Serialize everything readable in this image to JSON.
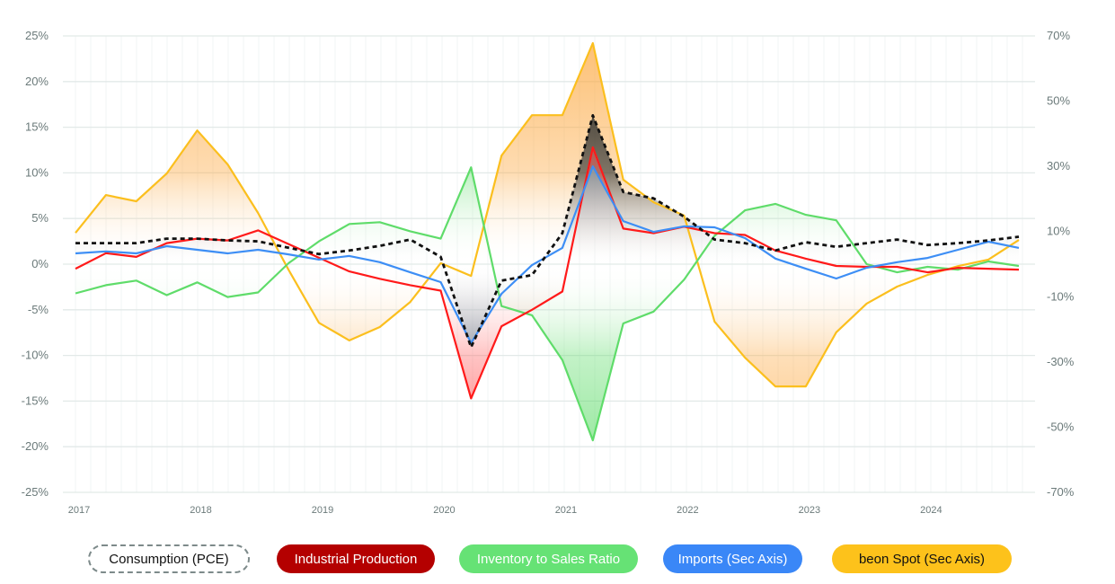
{
  "chart_data": {
    "type": "line",
    "x": [
      "2017Q1",
      "2017Q2",
      "2017Q3",
      "2017Q4",
      "2018Q1",
      "2018Q2",
      "2018Q3",
      "2018Q4",
      "2019Q1",
      "2019Q2",
      "2019Q3",
      "2019Q4",
      "2020Q1",
      "2020Q2",
      "2020Q3",
      "2020Q4",
      "2021Q1",
      "2021Q2",
      "2021Q3",
      "2021Q4",
      "2022Q1",
      "2022Q2",
      "2022Q3",
      "2022Q4",
      "2023Q1",
      "2023Q2",
      "2023Q3",
      "2023Q4",
      "2024Q1",
      "2024Q2",
      "2024Q3",
      "2024Q4"
    ],
    "x_tick_labels": [
      "2017",
      "2018",
      "2019",
      "2020",
      "2021",
      "2022",
      "2023",
      "2024"
    ],
    "y_ticks": [
      "25%",
      "20%",
      "15%",
      "10%",
      "5%",
      "0%",
      "-5%",
      "-10%",
      "-15%",
      "-20%",
      "-25%"
    ],
    "y2_ticks": [
      "70%",
      "50%",
      "30%",
      "10%",
      "-10%",
      "-30%",
      "-50%",
      "-70%"
    ],
    "ylim": [
      -25,
      25
    ],
    "y2lim": [
      -70,
      70
    ],
    "grid": true,
    "legend_position": "bottom",
    "series": [
      {
        "name": "Consumption (PCE)",
        "axis": "primary",
        "color": "#111111",
        "style": "dashed",
        "values": [
          2.3,
          2.3,
          2.3,
          2.8,
          2.8,
          2.6,
          2.5,
          1.8,
          1.1,
          1.5,
          2.0,
          2.7,
          0.8,
          -9.1,
          -1.8,
          -1.2,
          3.4,
          16.3,
          7.9,
          7.2,
          5.2,
          2.7,
          2.3,
          1.5,
          2.4,
          1.9,
          2.3,
          2.7,
          2.1,
          2.3,
          2.6,
          3.0
        ]
      },
      {
        "name": "Industrial Production",
        "axis": "primary",
        "color": "#ff1a1a",
        "legend_color": "#b40000",
        "values": [
          -0.5,
          1.2,
          0.8,
          2.3,
          2.8,
          2.6,
          3.7,
          2.2,
          0.7,
          -0.8,
          -1.6,
          -2.3,
          -2.9,
          -14.7,
          -6.8,
          -5.0,
          -3.0,
          12.8,
          3.9,
          3.4,
          4.1,
          3.4,
          3.2,
          1.5,
          0.6,
          -0.2,
          -0.3,
          -0.3,
          -0.9,
          -0.4,
          -0.5,
          -0.6
        ]
      },
      {
        "name": "Inventory to Sales Ratio",
        "axis": "primary",
        "color": "#5fdc6a",
        "legend_color": "#66e275",
        "values": [
          -3.2,
          -2.3,
          -1.8,
          -3.4,
          -2.0,
          -3.6,
          -3.1,
          0.1,
          2.5,
          4.4,
          4.6,
          3.6,
          2.8,
          10.6,
          -4.6,
          -5.6,
          -10.5,
          -19.3,
          -6.5,
          -5.2,
          -1.7,
          3.1,
          5.9,
          6.6,
          5.4,
          4.8,
          0.0,
          -0.9,
          -0.3,
          -0.6,
          0.3,
          -0.2
        ]
      },
      {
        "name": "Imports (Sec Axis)",
        "axis": "secondary",
        "color": "#3d8ef5",
        "legend_color": "#3a87f7",
        "values": [
          3.3,
          3.9,
          3.3,
          5.5,
          4.4,
          3.3,
          4.4,
          3.0,
          1.4,
          2.5,
          0.6,
          -2.5,
          -5.5,
          -24.2,
          -9.1,
          -0.3,
          5.0,
          30.0,
          13.2,
          9.9,
          11.6,
          11.3,
          8.0,
          1.7,
          -1.4,
          -4.4,
          -1.1,
          0.6,
          1.9,
          4.4,
          6.9,
          5.0
        ]
      },
      {
        "name": "beon Spot (Sec Axis)",
        "axis": "secondary",
        "color": "#fbbf1e",
        "legend_color": "#fdc21b",
        "values": [
          9.6,
          21.2,
          19.3,
          27.8,
          41.0,
          30.6,
          15.7,
          -1.7,
          -18.0,
          -23.4,
          -19.3,
          -11.6,
          0.3,
          -3.6,
          33.3,
          45.7,
          45.7,
          67.8,
          25.9,
          19.0,
          14.9,
          -17.6,
          -28.7,
          -37.5,
          -37.5,
          -20.9,
          -12.1,
          -6.9,
          -3.3,
          -0.6,
          1.4,
          7.4
        ]
      }
    ]
  }
}
